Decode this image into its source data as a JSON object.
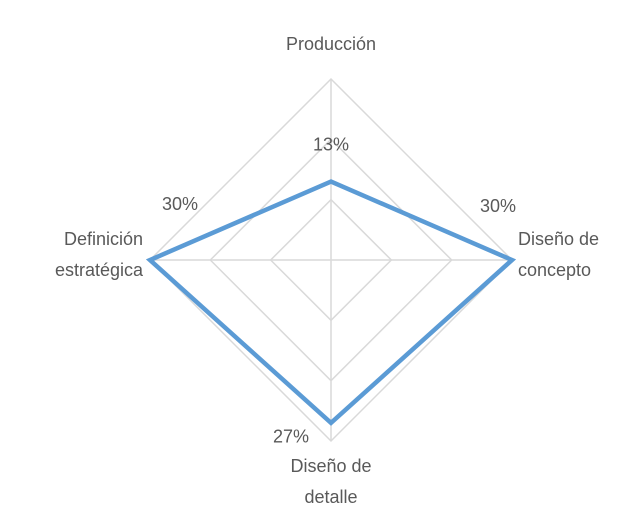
{
  "chart_data": {
    "type": "radar",
    "categories": [
      [
        "Producción"
      ],
      [
        "Diseño de",
        "concepto"
      ],
      [
        "Diseño de",
        "detalle"
      ],
      [
        "Definición",
        "estratégica"
      ]
    ],
    "series": [
      {
        "color": "#5b9bd5",
        "values": [
          13,
          30,
          27,
          30
        ],
        "value_labels": [
          "13%",
          "30%",
          "27%",
          "30%"
        ]
      }
    ],
    "ylim": [
      0,
      30
    ],
    "yticks": [
      0,
      10,
      20,
      30
    ],
    "grid": true
  }
}
